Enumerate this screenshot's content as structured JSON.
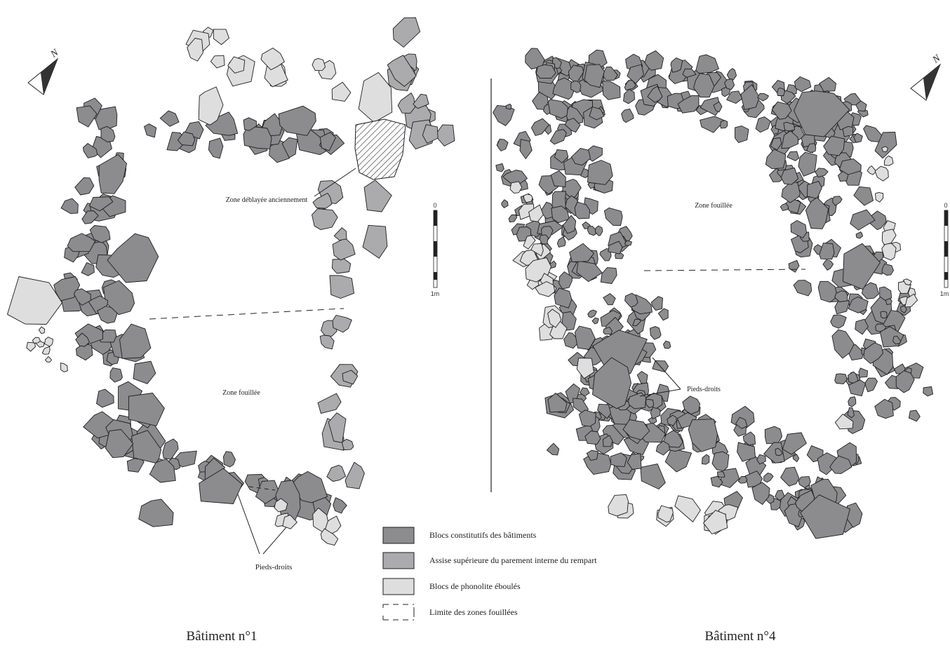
{
  "colors": {
    "dark": "#8c8c8e",
    "medium": "#ababad",
    "light": "#dedede",
    "stroke": "#1e1e1e"
  },
  "building1": {
    "title": "Bâtiment n°1",
    "zone_top": "Zone déblayée anciennement",
    "zone_main": "Zone fouillée",
    "label_pieds": "Pieds-droits",
    "north": "N",
    "scale_top": "0",
    "scale_bottom": "1m"
  },
  "building4": {
    "title": "Bâtiment n°4",
    "zone_main": "Zone fouillée",
    "label_pieds": "Pieds-droits",
    "north": "N",
    "scale_top": "0",
    "scale_bottom": "1m"
  },
  "legend": {
    "items": [
      {
        "label": "Blocs constitutifs des bâtiments",
        "swatch": "dark"
      },
      {
        "label": "Assise supérieure du parement interne du rempart",
        "swatch": "medium"
      },
      {
        "label": "Blocs de phonolite éboulés",
        "swatch": "light"
      },
      {
        "label": "Limite des zones fouillées",
        "swatch": "dashed"
      }
    ]
  }
}
